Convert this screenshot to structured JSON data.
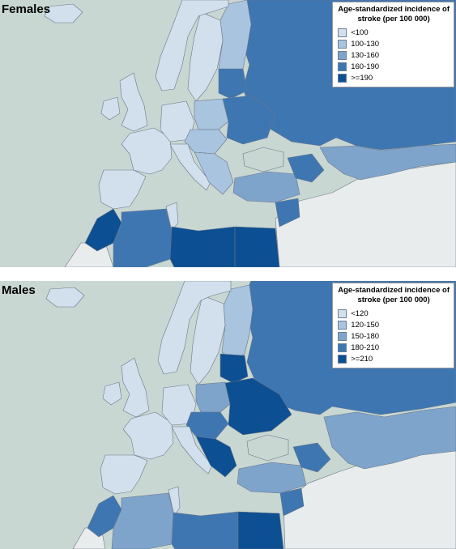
{
  "maps": [
    {
      "title": "Females",
      "legend": {
        "title_line1": "Age-standardized incidence of",
        "title_line2": "stroke (per 100 000)",
        "items": [
          {
            "label": "<100",
            "color": "#d2e0ee"
          },
          {
            "label": "100-130",
            "color": "#a9c4df"
          },
          {
            "label": "130-160",
            "color": "#7ea4cc"
          },
          {
            "label": "160-190",
            "color": "#3e76b2"
          },
          {
            "label": ">=190",
            "color": "#0d4f93"
          }
        ]
      }
    },
    {
      "title": "Males",
      "legend": {
        "title_line1": "Age-standardized incidence of",
        "title_line2": "stroke (per 100 000)",
        "items": [
          {
            "label": "<120",
            "color": "#d2e0ee"
          },
          {
            "label": "120-150",
            "color": "#a9c4df"
          },
          {
            "label": "150-180",
            "color": "#7ea4cc"
          },
          {
            "label": "180-210",
            "color": "#3e76b2"
          },
          {
            "label": ">=210",
            "color": "#0d4f93"
          }
        ]
      }
    }
  ],
  "colors": {
    "sea": "#c9d7d3",
    "no_data": "#e9ecec",
    "border": "#6a7685"
  }
}
